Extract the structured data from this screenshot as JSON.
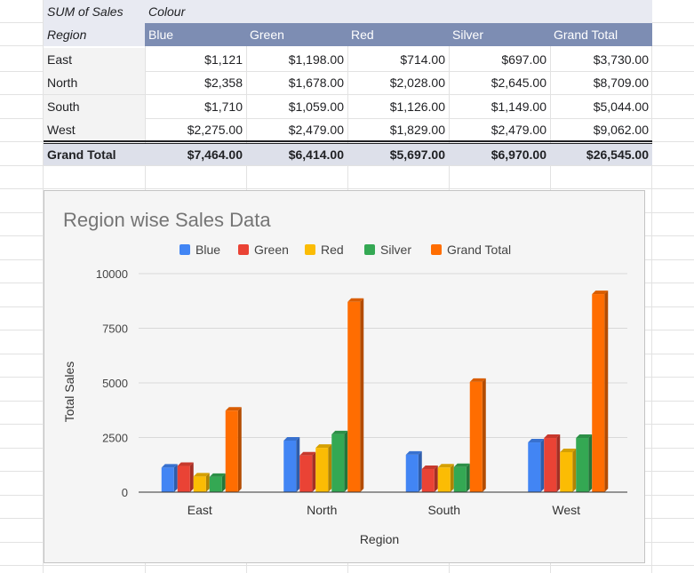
{
  "pivot": {
    "header_values_label": "SUM of Sales",
    "header_columns_label": "Colour",
    "row_header": "Region",
    "columns": [
      "Blue",
      "Green",
      "Red",
      "Silver",
      "Grand Total"
    ],
    "rows": [
      {
        "region": "East",
        "values": [
          "$1,121",
          "$1,198.00",
          "$714.00",
          "$697.00",
          "$3,730.00"
        ]
      },
      {
        "region": "North",
        "values": [
          "$2,358",
          "$1,678.00",
          "$2,028.00",
          "$2,645.00",
          "$8,709.00"
        ]
      },
      {
        "region": "South",
        "values": [
          "$1,710",
          "$1,059.00",
          "$1,126.00",
          "$1,149.00",
          "$5,044.00"
        ]
      },
      {
        "region": "West",
        "values": [
          "$2,275.00",
          "$2,479.00",
          "$1,829.00",
          "$2,479.00",
          "$9,062.00"
        ]
      }
    ],
    "total_label": "Grand Total",
    "totals": [
      "$7,464.00",
      "$6,414.00",
      "$5,697.00",
      "$6,970.00",
      "$26,545.00"
    ]
  },
  "chart_data": {
    "type": "bar",
    "title": "Region wise Sales Data",
    "xlabel": "Region",
    "ylabel": "Total Sales",
    "categories": [
      "East",
      "North",
      "South",
      "West"
    ],
    "ylim": [
      0,
      10000
    ],
    "yticks": [
      0,
      2500,
      5000,
      7500,
      10000
    ],
    "ytick_labels": [
      "0",
      "2500",
      "5000",
      "7500",
      "10000"
    ],
    "grid": true,
    "legend_position": "top",
    "series": [
      {
        "name": "Blue",
        "color": "#4285f4",
        "values": [
          1121,
          2358,
          1710,
          2275
        ]
      },
      {
        "name": "Green",
        "color": "#ea4335",
        "values": [
          1198,
          1678,
          1059,
          2479
        ]
      },
      {
        "name": "Red",
        "color": "#fbbc04",
        "values": [
          714,
          2028,
          1126,
          1829
        ]
      },
      {
        "name": "Silver",
        "color": "#34a853",
        "values": [
          697,
          2645,
          1149,
          2479
        ]
      },
      {
        "name": "Grand Total",
        "color": "#ff6d01",
        "values": [
          3730,
          8709,
          5044,
          9062
        ]
      }
    ]
  }
}
